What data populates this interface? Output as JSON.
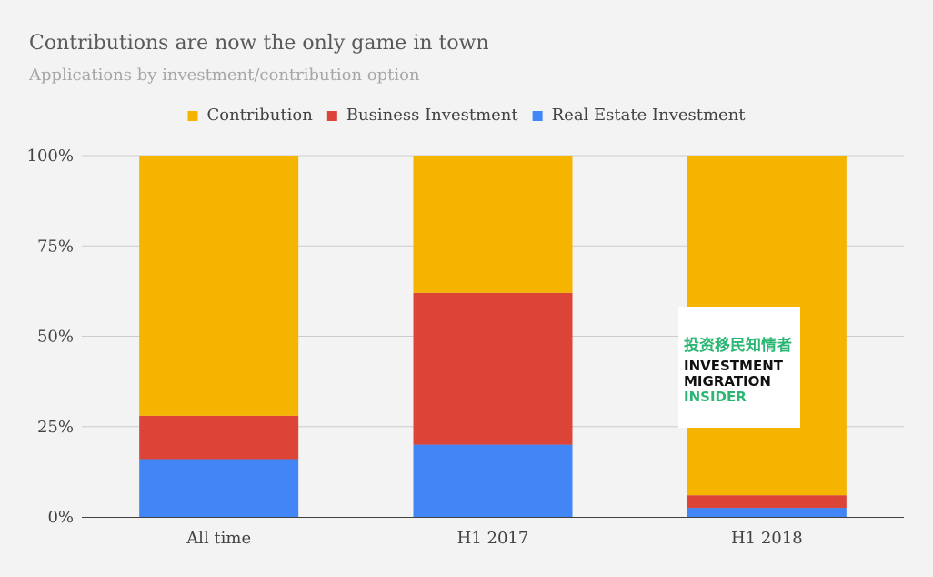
{
  "chart_data": {
    "type": "bar",
    "stacked": "percent",
    "title": "Contributions are now the only game in town",
    "subtitle": "Applications by investment/contribution option",
    "categories": [
      "All time",
      "H1 2017",
      "H1 2018"
    ],
    "series": [
      {
        "name": "Real Estate Investment",
        "color": "#4285f4",
        "values": [
          16,
          20,
          2.5
        ]
      },
      {
        "name": "Business Investment",
        "color": "#db4437",
        "values": [
          12,
          42,
          3.5
        ]
      },
      {
        "name": "Contribution",
        "color": "#f4b400",
        "values": [
          72,
          38,
          94
        ]
      }
    ],
    "legend_order": [
      "Contribution",
      "Business Investment",
      "Real Estate Investment"
    ],
    "legend_position": "top",
    "y_ticks": [
      "0%",
      "25%",
      "50%",
      "75%",
      "100%"
    ],
    "y_tick_values": [
      0,
      25,
      50,
      75,
      100
    ],
    "ylim": [
      0,
      100
    ],
    "grid": true,
    "xlabel": "",
    "ylabel": ""
  },
  "watermark": {
    "line_cn": "投资移民知情者",
    "line1": "INVESTMENT",
    "line2": "MIGRATION",
    "line3": "INSIDER",
    "accent_color": "#2bb673",
    "text_color": "#111111"
  },
  "colors": {
    "background": "#f3f3f3",
    "title": "#595959",
    "subtitle": "#a6a6a6"
  }
}
